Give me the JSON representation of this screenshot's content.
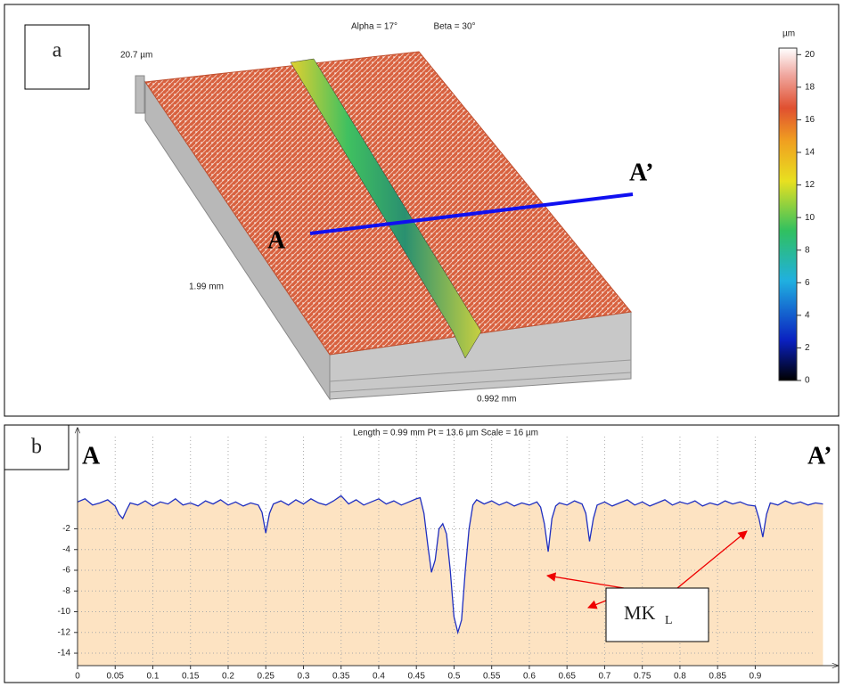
{
  "panel_a": {
    "label": "a",
    "view_alpha": "Alpha = 17°",
    "view_beta": "Beta = 30°",
    "height_label": "20.7 µm",
    "width_label": "1.99 mm",
    "depth_label": "0.992 mm",
    "section_start": "A",
    "section_end": "A’",
    "colorbar": {
      "unit": "µm",
      "lim": [
        0,
        20.4
      ],
      "ticks": [
        0,
        2,
        4,
        6,
        8,
        10,
        12,
        14,
        16,
        18,
        20
      ]
    }
  },
  "chart_data": {
    "type": "line",
    "panel_label": "b",
    "title": "Length = 0.99 mm  Pt = 13.6 µm  Scale = 16 µm",
    "section_start": "A",
    "section_end": "A’",
    "annotation": "MK",
    "annotation_subscript": "L",
    "x": [
      0,
      0.01,
      0.02,
      0.03,
      0.04,
      0.05,
      0.055,
      0.06,
      0.065,
      0.07,
      0.08,
      0.09,
      0.1,
      0.11,
      0.12,
      0.13,
      0.14,
      0.15,
      0.16,
      0.17,
      0.18,
      0.19,
      0.2,
      0.21,
      0.22,
      0.23,
      0.24,
      0.245,
      0.25,
      0.255,
      0.26,
      0.27,
      0.28,
      0.29,
      0.3,
      0.31,
      0.32,
      0.33,
      0.34,
      0.35,
      0.36,
      0.37,
      0.38,
      0.39,
      0.4,
      0.41,
      0.42,
      0.43,
      0.44,
      0.45,
      0.455,
      0.46,
      0.465,
      0.47,
      0.475,
      0.48,
      0.485,
      0.49,
      0.495,
      0.5,
      0.505,
      0.51,
      0.515,
      0.52,
      0.525,
      0.53,
      0.54,
      0.55,
      0.56,
      0.57,
      0.58,
      0.59,
      0.6,
      0.61,
      0.615,
      0.62,
      0.625,
      0.63,
      0.635,
      0.64,
      0.65,
      0.66,
      0.67,
      0.675,
      0.68,
      0.685,
      0.69,
      0.7,
      0.71,
      0.72,
      0.73,
      0.74,
      0.75,
      0.76,
      0.77,
      0.78,
      0.79,
      0.8,
      0.81,
      0.82,
      0.83,
      0.84,
      0.85,
      0.86,
      0.87,
      0.88,
      0.89,
      0.9,
      0.905,
      0.91,
      0.915,
      0.92,
      0.93,
      0.94,
      0.95,
      0.96,
      0.97,
      0.98,
      0.99
    ],
    "series": [
      {
        "color": "#1f2fc0",
        "values": [
          0.6,
          0.9,
          0.3,
          0.5,
          0.8,
          0.2,
          -0.6,
          -1.0,
          -0.2,
          0.5,
          0.3,
          0.7,
          0.2,
          0.6,
          0.4,
          0.9,
          0.3,
          0.5,
          0.2,
          0.7,
          0.4,
          0.8,
          0.3,
          0.6,
          0.2,
          0.5,
          0.3,
          -0.4,
          -2.4,
          -0.5,
          0.4,
          0.7,
          0.3,
          0.8,
          0.4,
          0.9,
          0.5,
          0.3,
          0.7,
          1.2,
          0.4,
          0.8,
          0.3,
          0.6,
          0.9,
          0.4,
          0.7,
          0.3,
          0.6,
          0.9,
          1.0,
          -0.5,
          -3.5,
          -6.2,
          -5.0,
          -2.0,
          -1.5,
          -2.5,
          -6.0,
          -10.5,
          -12.0,
          -10.8,
          -6.0,
          -2.0,
          0.3,
          0.8,
          0.4,
          0.7,
          0.3,
          0.6,
          0.2,
          0.5,
          0.3,
          0.6,
          0.1,
          -1.5,
          -4.2,
          -1.0,
          0.2,
          0.5,
          0.3,
          0.7,
          0.4,
          -0.5,
          -3.2,
          -1.0,
          0.3,
          0.6,
          0.2,
          0.5,
          0.8,
          0.3,
          0.6,
          0.2,
          0.5,
          0.8,
          0.3,
          0.6,
          0.4,
          0.7,
          0.2,
          0.5,
          0.3,
          0.7,
          0.4,
          0.6,
          0.3,
          0.2,
          -1.0,
          -2.8,
          -0.6,
          0.5,
          0.3,
          0.7,
          0.4,
          0.6,
          0.3,
          0.5,
          0.4
        ]
      }
    ],
    "fill_color": "#fde3c2",
    "xlim": [
      0,
      0.98
    ],
    "ylim": [
      -15.2,
      6.9
    ],
    "xticks": [
      0,
      0.05,
      0.1,
      0.15,
      0.2,
      0.25,
      0.3,
      0.35,
      0.4,
      0.45,
      0.5,
      0.55,
      0.6,
      0.65,
      0.7,
      0.75,
      0.8,
      0.85,
      0.9
    ],
    "yticks": [
      -2,
      -4,
      -6,
      -8,
      -10,
      -12,
      -14
    ],
    "grid": true
  }
}
